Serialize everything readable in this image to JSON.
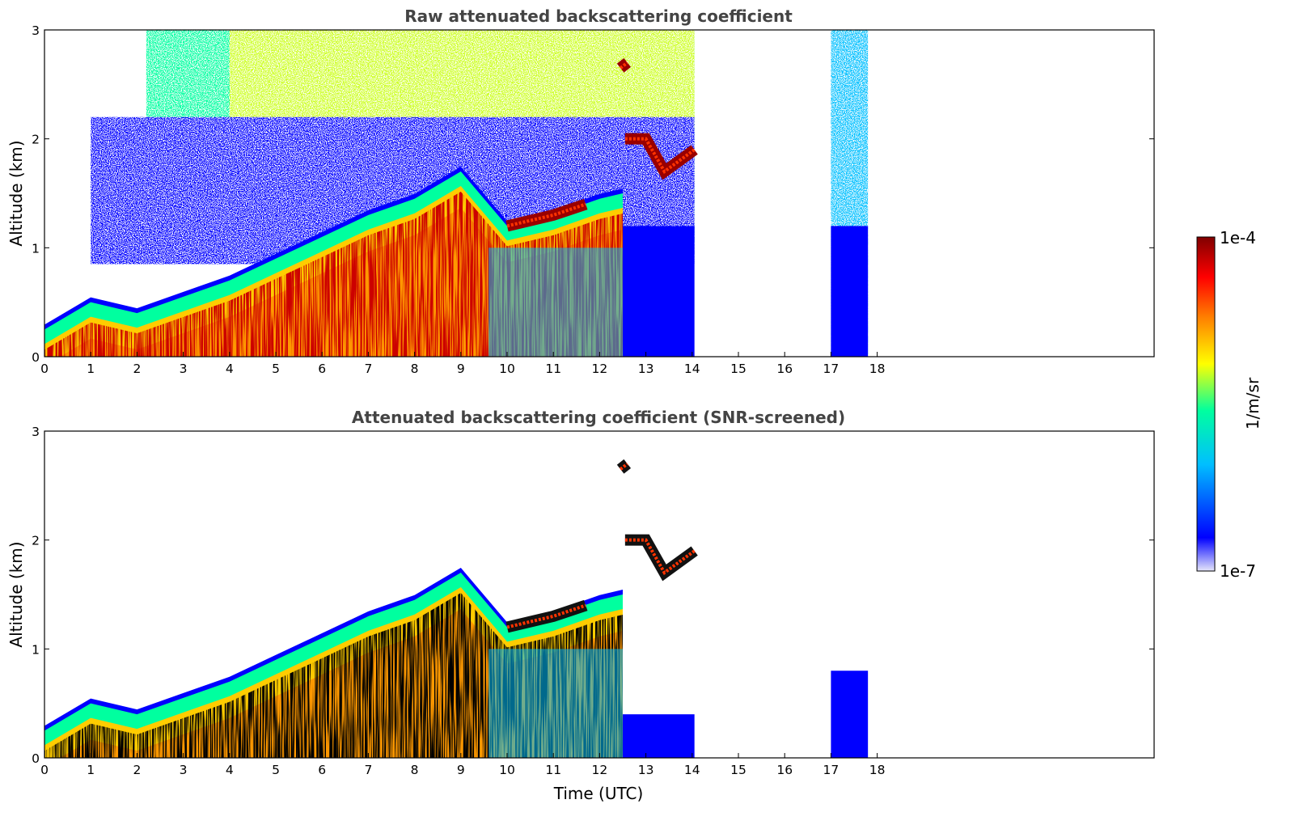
{
  "chart_data": [
    {
      "type": "heatmap",
      "title": "Raw attenuated backscattering coefficient",
      "ylabel": "Altitude (km)",
      "xlabel": "",
      "xlim": [
        0,
        24
      ],
      "ylim": [
        0,
        3
      ],
      "x_ticks": [
        "0",
        "1",
        "2",
        "3",
        "4",
        "5",
        "6",
        "7",
        "8",
        "9",
        "10",
        "11",
        "12",
        "13",
        "14",
        "15",
        "16",
        "17",
        "18"
      ],
      "y_ticks": [
        "0",
        "1",
        "2",
        "3"
      ],
      "data_gaps_utc": [
        [
          14.05,
          17.0
        ],
        [
          17.8,
          24
        ]
      ],
      "features": [
        {
          "kind": "boundary_layer",
          "x": [
            0,
            1,
            2,
            3,
            4,
            5,
            6,
            7,
            8,
            9,
            10,
            11,
            12,
            12.5
          ],
          "top_km": [
            0.25,
            0.5,
            0.4,
            0.55,
            0.7,
            0.9,
            1.1,
            1.3,
            1.45,
            1.7,
            1.2,
            1.3,
            1.45,
            1.5
          ]
        },
        {
          "kind": "cloud_layer",
          "x": [
            12.55,
            13.0,
            13.4,
            14.05
          ],
          "altitude_km": [
            2.0,
            2.0,
            1.7,
            1.9
          ]
        },
        {
          "kind": "cloud_layer",
          "x": [
            10.0,
            11.0,
            11.7
          ],
          "altitude_km": [
            1.2,
            1.3,
            1.4
          ]
        },
        {
          "kind": "elevated_layer",
          "x": [
            12.45,
            12.6
          ],
          "altitude_km": [
            2.65,
            2.7
          ]
        }
      ]
    },
    {
      "type": "heatmap",
      "title": "Attenuated backscattering coefficient (SNR-screened)",
      "ylabel": "Altitude (km)",
      "xlabel": "Time (UTC)",
      "xlim": [
        0,
        24
      ],
      "ylim": [
        0,
        3
      ],
      "x_ticks": [
        "0",
        "1",
        "2",
        "3",
        "4",
        "5",
        "6",
        "7",
        "8",
        "9",
        "10",
        "11",
        "12",
        "13",
        "14",
        "15",
        "16",
        "17",
        "18"
      ],
      "y_ticks": [
        "0",
        "1",
        "2",
        "3"
      ],
      "data_gaps_utc": [
        [
          14.05,
          17.0
        ],
        [
          17.8,
          24
        ]
      ]
    }
  ],
  "colorbar": {
    "max_label": "1e-4",
    "min_label": "1e-7",
    "label": "1/m/sr",
    "scale": "log",
    "colormap": "jet",
    "stops": [
      "#e6e6fa",
      "#0000ff",
      "#00bfff",
      "#00ff9f",
      "#ffff00",
      "#ff7f00",
      "#ff0000",
      "#800000"
    ]
  }
}
